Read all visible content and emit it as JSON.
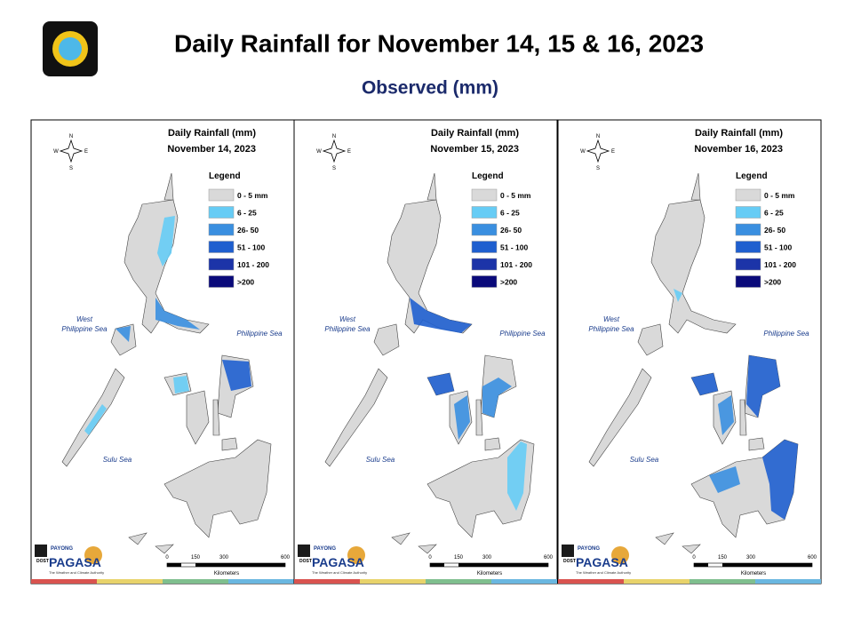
{
  "header": {
    "title": "Daily Rainfall for November 14, 15 & 16, 2023",
    "subtitle": "Observed (mm)"
  },
  "maps": [
    {
      "title": "Daily Rainfall (mm)",
      "date": "November 14, 2023"
    },
    {
      "title": "Daily Rainfall (mm)",
      "date": "November 15, 2023"
    },
    {
      "title": "Daily Rainfall (mm)",
      "date": "November 16, 2023"
    }
  ],
  "legend": {
    "title": "Legend",
    "items": [
      {
        "label": "0 - 5 mm",
        "color": "#d9d9d9"
      },
      {
        "label": "6 - 25",
        "color": "#66ccf5"
      },
      {
        "label": "26- 50",
        "color": "#3a8fe0"
      },
      {
        "label": "51 - 100",
        "color": "#1f5fcf"
      },
      {
        "label": "101 - 200",
        "color": "#1c34a8"
      },
      {
        "label": ">200",
        "color": "#0a0a7a"
      }
    ]
  },
  "compass": {
    "north": "N",
    "east": "E",
    "west": "W",
    "south": "S"
  },
  "seas": {
    "west_line1": "West",
    "west_line2": "Philippine Sea",
    "east": "Philippine Sea",
    "south": "Sulu Sea"
  },
  "scale": {
    "ticks": [
      "0",
      "150",
      "300",
      "600"
    ],
    "unit": "Kilometers"
  },
  "logo": {
    "agency": "DOST",
    "program": "PAYONG",
    "name": "PAGASA",
    "tagline": "The Weather and Climate Authority"
  }
}
